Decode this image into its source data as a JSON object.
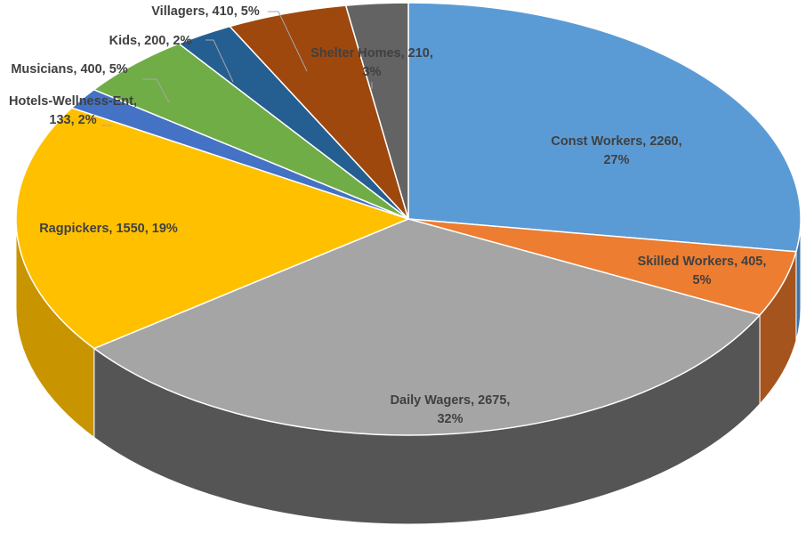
{
  "chart_data": {
    "type": "pie",
    "title": "",
    "style": "3d-exploded-depth",
    "slices": [
      {
        "label": "Const Workers",
        "value": 2260,
        "percent": "27%",
        "color": "#5b9bd5",
        "side": "#3e73a6",
        "lines": [
          "Const Workers, 2260,",
          "27%"
        ]
      },
      {
        "label": "Skilled Workers",
        "value": 405,
        "percent": "5%",
        "color": "#ed7d31",
        "side": "#a6541d",
        "lines": [
          "Skilled Workers, 405,",
          "5%"
        ]
      },
      {
        "label": "Daily Wagers",
        "value": 2675,
        "percent": "32%",
        "color": "#a5a5a5",
        "side": "#555555",
        "lines": [
          "Daily Wagers, 2675,",
          "32%"
        ]
      },
      {
        "label": "Ragpickers",
        "value": 1550,
        "percent": "19%",
        "color": "#ffc000",
        "side": "#c89400",
        "lines": [
          "Ragpickers, 1550, 19%"
        ]
      },
      {
        "label": "Hotels-Wellness-Ent",
        "value": 133,
        "percent": "2%",
        "color": "#4472c4",
        "side": "#2e4f8a",
        "lines": [
          "Hotels-Wellness-Ent,",
          "133, 2%"
        ]
      },
      {
        "label": "Musicians",
        "value": 400,
        "percent": "5%",
        "color": "#70ad47",
        "side": "#4e7a31",
        "lines": [
          "Musicians, 400, 5%"
        ]
      },
      {
        "label": "Kids",
        "value": 200,
        "percent": "2%",
        "color": "#255e91",
        "side": "#173d5e",
        "lines": [
          "Kids, 200, 2%"
        ]
      },
      {
        "label": "Villagers",
        "value": 410,
        "percent": "5%",
        "color": "#9e480e",
        "side": "#6a2f08",
        "lines": [
          "Villagers, 410, 5%"
        ]
      },
      {
        "label": "Shelter Homes",
        "value": 210,
        "percent": "3%",
        "color": "#636363",
        "side": "#3f3f3f",
        "lines": [
          "Shelter Homes, 210,",
          "3%"
        ]
      }
    ]
  }
}
